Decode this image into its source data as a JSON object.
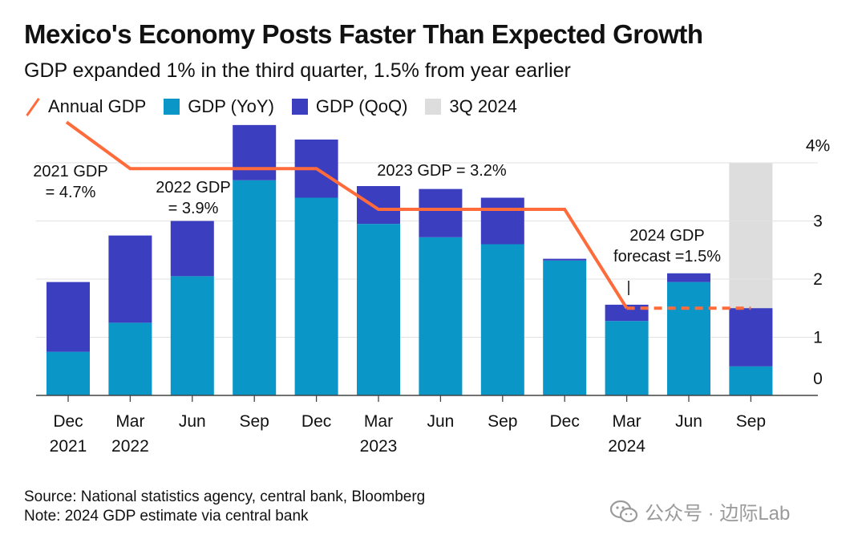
{
  "title": "Mexico's Economy Posts Faster Than Expected Growth",
  "subtitle": "GDP expanded 1% in the third quarter, 1.5% from year earlier",
  "legend": [
    {
      "label": "Annual GDP",
      "kind": "line",
      "color": "#ff6b3a"
    },
    {
      "label": "GDP (YoY)",
      "kind": "swatch",
      "color": "#0b96c8"
    },
    {
      "label": "GDP (QoQ)",
      "kind": "swatch",
      "color": "#3c3ec0"
    },
    {
      "label": "3Q 2024",
      "kind": "swatch",
      "color": "#dddddd"
    }
  ],
  "chart_data": {
    "type": "bar",
    "stacked": true,
    "categories": [
      "Dec 2021",
      "Mar 2022",
      "Jun 2022",
      "Sep 2022",
      "Dec 2022",
      "Mar 2023",
      "Jun 2023",
      "Sep 2023",
      "Dec 2023",
      "Mar 2024",
      "Jun 2024",
      "Sep 2024"
    ],
    "x_tick_labels": [
      [
        "Dec",
        "2021"
      ],
      [
        "Mar",
        "2022"
      ],
      [
        "Jun",
        ""
      ],
      [
        "Sep",
        ""
      ],
      [
        "Dec",
        ""
      ],
      [
        "Mar",
        "2023"
      ],
      [
        "Jun",
        ""
      ],
      [
        "Sep",
        ""
      ],
      [
        "Dec",
        ""
      ],
      [
        "Mar",
        "2024"
      ],
      [
        "Jun",
        ""
      ],
      [
        "Sep",
        ""
      ]
    ],
    "series": [
      {
        "name": "GDP (YoY)",
        "color": "#0b96c8",
        "values": [
          0.75,
          1.25,
          2.05,
          3.7,
          3.4,
          2.95,
          2.72,
          2.6,
          2.32,
          1.28,
          1.95,
          0.5
        ]
      },
      {
        "name": "GDP (QoQ)",
        "color": "#3c3ec0",
        "values": [
          1.2,
          1.5,
          0.95,
          0.95,
          1.0,
          0.65,
          0.83,
          0.8,
          0.03,
          0.28,
          0.15,
          1.0
        ]
      }
    ],
    "annual_gdp": {
      "name": "Annual GDP",
      "color": "#ff6b3a",
      "points": [
        {
          "x": "Dec 2021",
          "y": 4.7
        },
        {
          "x": "Mar 2022",
          "y": 3.9
        },
        {
          "x": "Dec 2022",
          "y": 3.9
        },
        {
          "x": "Mar 2023",
          "y": 3.2
        },
        {
          "x": "Dec 2023",
          "y": 3.2
        },
        {
          "x": "Mar 2024",
          "y": 1.5
        },
        {
          "x": "Sep 2024",
          "y": 1.5
        }
      ],
      "forecast_from": "Mar 2024"
    },
    "highlight": {
      "label": "3Q 2024",
      "category": "Sep 2024",
      "from": 0,
      "to": 4,
      "color": "#dddddd"
    },
    "annotations": [
      {
        "lines": [
          "2021 GDP",
          "= 4.7%"
        ]
      },
      {
        "lines": [
          "2022 GDP",
          "= 3.9%"
        ]
      },
      {
        "lines": [
          "2023 GDP = 3.2%"
        ]
      },
      {
        "lines": [
          "2024 GDP",
          "forecast =1.5%"
        ]
      }
    ],
    "y_ticks": [
      {
        "value": 0,
        "label": "0"
      },
      {
        "value": 1,
        "label": "1"
      },
      {
        "value": 2,
        "label": "2"
      },
      {
        "value": 3,
        "label": "3"
      },
      {
        "value": 4,
        "label": "4%"
      }
    ],
    "ylim": [
      0,
      4.7
    ],
    "y_axis_side": "right",
    "grid": true
  },
  "source": "Source: National statistics agency, central bank, Bloomberg",
  "note": "Note: 2024 GDP estimate via central bank",
  "watermark": "公众号 · 边际Lab"
}
